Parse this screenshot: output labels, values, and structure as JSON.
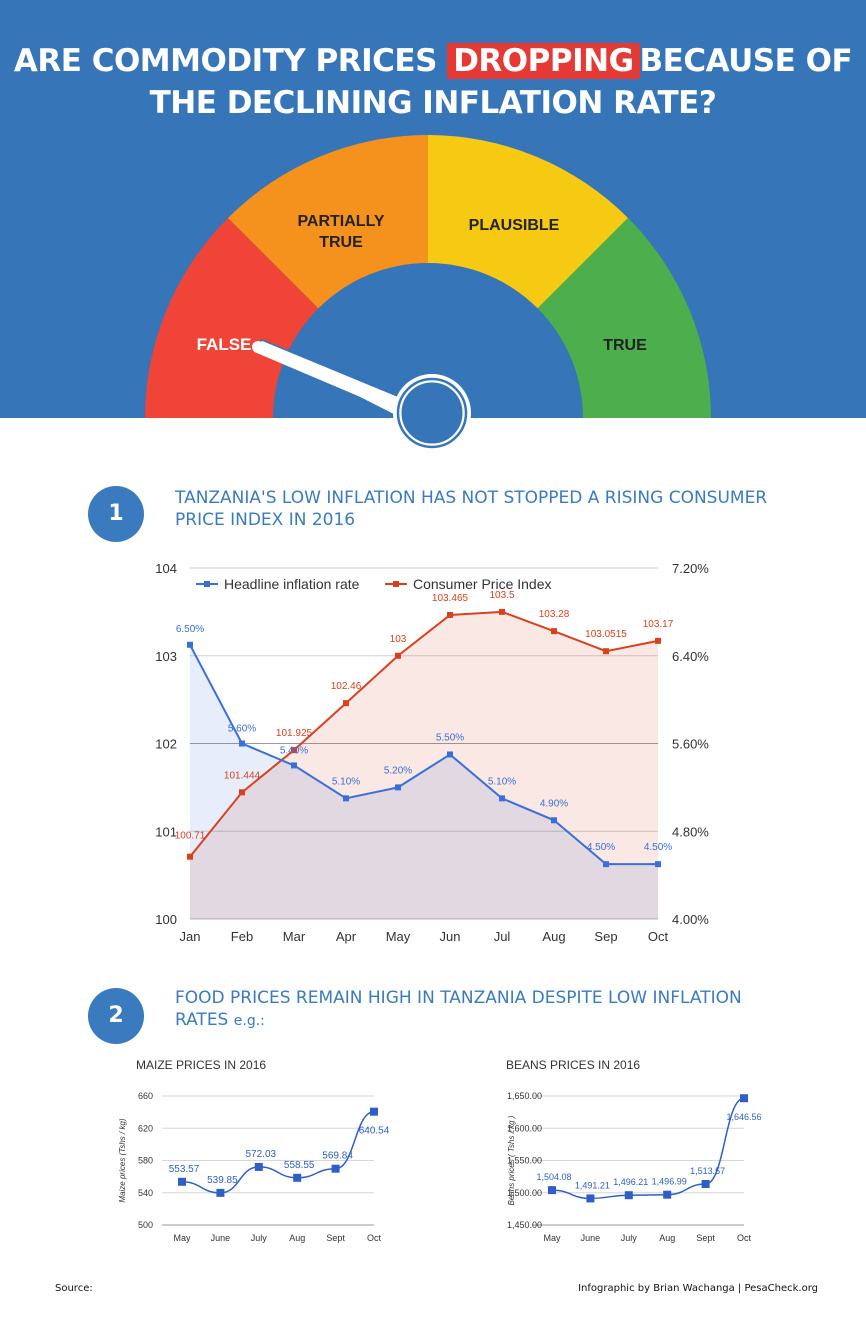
{
  "header": {
    "title_part1": "ARE COMMODITY PRICES",
    "title_highlight": "DROPPING",
    "title_part2": "BECAUSE OF",
    "title_line2": "THE DECLINING INFLATION RATE?"
  },
  "gauge": {
    "segments": [
      {
        "label": "FALSE",
        "color": "#ef4437"
      },
      {
        "label": "PARTIALLY TRUE",
        "color": "#f5921e"
      },
      {
        "label": "PLAUSIBLE",
        "color": "#f6c913"
      },
      {
        "label": "TRUE",
        "color": "#4cae4c"
      }
    ],
    "verdict": "FALSE"
  },
  "section1": {
    "number": "1",
    "title": "TANZANIA'S LOW INFLATION HAS NOT STOPPED A RISING CONSUMER PRICE INDEX IN 2016"
  },
  "section2": {
    "number": "2",
    "title": "FOOD PRICES REMAIN HIGH IN TANZANIA DESPITE LOW INFLATION RATES",
    "title_suffix": "e.g.:"
  },
  "chart_data": [
    {
      "type": "line",
      "categories": [
        "Jan",
        "Feb",
        "Mar",
        "Apr",
        "May",
        "Jun",
        "Jul",
        "Aug",
        "Sep",
        "Oct"
      ],
      "series": [
        {
          "name": "Headline inflation rate",
          "axis": "right",
          "color": "#3a6fd8",
          "values": [
            6.5,
            5.6,
            5.4,
            5.1,
            5.2,
            5.5,
            5.1,
            4.9,
            4.5,
            4.5
          ],
          "labels": [
            "6.50%",
            "5.60%",
            "5.40%",
            "5.10%",
            "5.20%",
            "5.50%",
            "5.10%",
            "4.90%",
            "4.50%",
            "4.50%"
          ]
        },
        {
          "name": "Consumer Price Index",
          "axis": "left",
          "color": "#d8411e",
          "values": [
            100.71,
            101.444,
            101.925,
            102.46,
            103,
            103.465,
            103.5,
            103.28,
            103.0515,
            103.17
          ],
          "labels": [
            "100.71",
            "101.444",
            "101.925",
            "102.46",
            "103",
            "103.465",
            "103.5",
            "103.28",
            "103.0515",
            "103.17"
          ]
        }
      ],
      "left_axis": {
        "min": 100,
        "max": 104,
        "ticks": [
          "100",
          "101",
          "102",
          "103",
          "104"
        ]
      },
      "right_axis": {
        "min": 4.0,
        "max": 7.2,
        "ticks": [
          "4.00%",
          "4.80%",
          "5.60%",
          "6.40%",
          "7.20%"
        ]
      },
      "legend": "top",
      "grid": true
    },
    {
      "type": "line",
      "title": "MAIZE PRICES IN 2016",
      "ylabel": "Maize prices (Tshs / kg)",
      "categories": [
        "May",
        "June",
        "July",
        "Aug",
        "Sept",
        "Oct"
      ],
      "series": [
        {
          "color": "#2f5fc4",
          "values": [
            553.57,
            539.85,
            572.03,
            558.55,
            569.84,
            640.54
          ],
          "labels": [
            "553.57",
            "539.85",
            "572.03",
            "558.55",
            "569.84",
            "640.54"
          ]
        }
      ],
      "ylim": [
        500,
        660
      ],
      "ticks": [
        "500",
        "540",
        "580",
        "620",
        "660"
      ],
      "grid": true
    },
    {
      "type": "line",
      "title": "BEANS PRICES IN 2016",
      "ylabel": "Beans prices ( Tshs / kg )",
      "categories": [
        "May",
        "June",
        "July",
        "Aug",
        "Sept",
        "Oct"
      ],
      "series": [
        {
          "color": "#2f5fc4",
          "values": [
            1504.08,
            1491.21,
            1496.21,
            1496.99,
            1513.57,
            1646.56
          ],
          "labels": [
            "1,504.08",
            "1,491.21",
            "1,496.21",
            "1,496.99",
            "1,513.57",
            "1,646.56"
          ]
        }
      ],
      "ylim": [
        1450,
        1650
      ],
      "ticks": [
        "1,450.00",
        "1,500.00",
        "1,550.00",
        "1,600.00",
        "1,650.00"
      ],
      "grid": true
    }
  ],
  "footer": {
    "source": "Source:",
    "credit": "Infographic by Brian Wachanga | PesaCheck.org"
  }
}
